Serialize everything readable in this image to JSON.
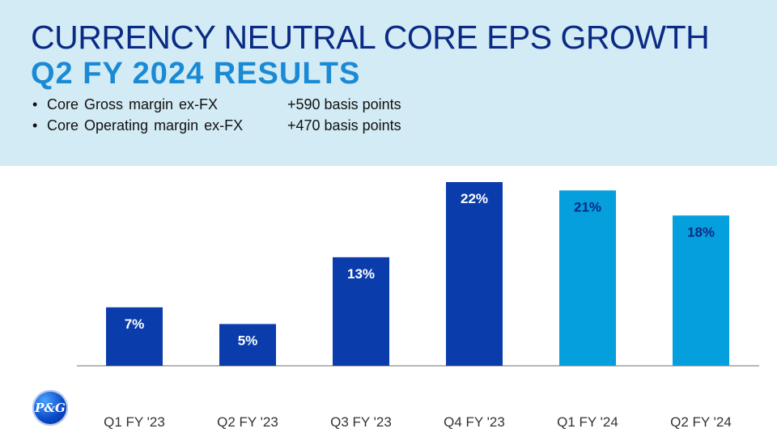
{
  "header": {
    "title": "CURRENCY NEUTRAL CORE EPS GROWTH",
    "subtitle": "Q2 FY 2024 RESULTS",
    "bullets": [
      {
        "marker": "•",
        "label": "Core Gross margin ex-FX",
        "value": "+590 basis points"
      },
      {
        "marker": "•",
        "label": "Core Operating margin ex-FX",
        "value": "+470 basis points"
      }
    ]
  },
  "logo": {
    "text": "P&G",
    "icon": "pg-logo-icon"
  },
  "colors": {
    "dark_bar": "#0a3dab",
    "light_bar": "#069fde",
    "header_bg": "#d3ebf4"
  },
  "chart_data": {
    "type": "bar",
    "categories": [
      "Q1 FY '23",
      "Q2 FY '23",
      "Q3 FY '23",
      "Q4 FY '23",
      "Q1 FY '24",
      "Q2 FY '24"
    ],
    "values": [
      7,
      5,
      13,
      22,
      21,
      18
    ],
    "data_labels": [
      "7%",
      "5%",
      "13%",
      "22%",
      "21%",
      "18%"
    ],
    "bar_colors": [
      "#0a3dab",
      "#0a3dab",
      "#0a3dab",
      "#0a3dab",
      "#069fde",
      "#069fde"
    ],
    "label_colors": [
      "#ffffff",
      "#ffffff",
      "#ffffff",
      "#ffffff",
      "#0a2a85",
      "#0a2a85"
    ],
    "ylim": [
      0,
      22
    ],
    "grid": false,
    "legend": "none"
  }
}
